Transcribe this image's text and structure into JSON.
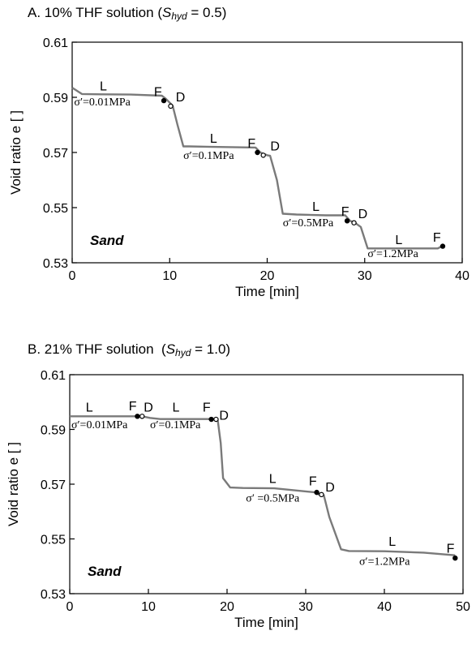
{
  "chart_data": [
    {
      "type": "line",
      "title_prefix": "A. 10% THF solution (",
      "title_var": "S",
      "title_sub": "hyd",
      "title_suffix": " = 0.5)",
      "xlabel": "Time [min]",
      "ylabel": "Void ratio e [ ]",
      "xlim": [
        0,
        40
      ],
      "ylim": [
        0.53,
        0.61
      ],
      "xticks": [
        0,
        10,
        20,
        30,
        40
      ],
      "yticks": [
        "0.53",
        "0.55",
        "0.57",
        "0.59",
        "0.61"
      ],
      "sample_label": "Sand",
      "line_color": "#7a7a7a",
      "series": [
        {
          "x": [
            0,
            1,
            3,
            6,
            9.2,
            9.6,
            10.3,
            10.8,
            11.4,
            12,
            15,
            18.8,
            19.3,
            20.0,
            20.3,
            21.0,
            21.6,
            23,
            26,
            28.0,
            28.5,
            29.0,
            29.6,
            30.3,
            31,
            34,
            37.5,
            38.0
          ],
          "y": [
            0.5935,
            0.5912,
            0.5911,
            0.591,
            0.5906,
            0.5895,
            0.587,
            0.58,
            0.5722,
            0.5722,
            0.572,
            0.5718,
            0.57,
            0.569,
            0.5688,
            0.56,
            0.5478,
            0.5475,
            0.5472,
            0.5472,
            0.5452,
            0.5445,
            0.543,
            0.5352,
            0.5352,
            0.5352,
            0.5352,
            0.5362
          ]
        }
      ],
      "markers": [
        {
          "label": "F",
          "x": 9.4,
          "y": 0.5888,
          "filled": true,
          "lx": 8.8,
          "ly": 0.5905
        },
        {
          "label": "D",
          "x": 10.1,
          "y": 0.5868,
          "filled": false,
          "lx": 11.1,
          "ly": 0.5885
        },
        {
          "label": "F",
          "x": 19.0,
          "y": 0.57,
          "filled": true,
          "lx": 18.4,
          "ly": 0.5717
        },
        {
          "label": "D",
          "x": 19.6,
          "y": 0.569,
          "filled": false,
          "lx": 20.8,
          "ly": 0.5707
        },
        {
          "label": "F",
          "x": 28.2,
          "y": 0.5452,
          "filled": true,
          "lx": 28.0,
          "ly": 0.547
        },
        {
          "label": "D",
          "x": 28.9,
          "y": 0.5445,
          "filled": false,
          "lx": 29.8,
          "ly": 0.5462
        },
        {
          "label": "F",
          "x": 38.0,
          "y": 0.536,
          "filled": true,
          "lx": 37.4,
          "ly": 0.5377
        }
      ],
      "line_labels": [
        {
          "text": "L",
          "x": 3.2,
          "y": 0.5925
        },
        {
          "text": "L",
          "x": 14.5,
          "y": 0.5735
        },
        {
          "text": "L",
          "x": 25.0,
          "y": 0.5488
        },
        {
          "text": "L",
          "x": 33.5,
          "y": 0.5367
        }
      ],
      "stress_labels": [
        {
          "text": "σ′=0.01MPa",
          "x": 0.2,
          "y": 0.587
        },
        {
          "text": "σ′=0.1MPa",
          "x": 11.4,
          "y": 0.5677
        },
        {
          "text": "σ′=0.5MPa",
          "x": 21.6,
          "y": 0.5432
        },
        {
          "text": "σ′=1.2MPa",
          "x": 30.3,
          "y": 0.5321
        }
      ]
    },
    {
      "type": "line",
      "title_prefix": "B. 21% THF solution  (",
      "title_var": "S",
      "title_sub": "hyd",
      "title_suffix": " = 1.0)",
      "xlabel": "Time [min]",
      "ylabel": "Void ratio e [ ]",
      "xlim": [
        0,
        50
      ],
      "ylim": [
        0.53,
        0.61
      ],
      "xticks": [
        0,
        10,
        20,
        30,
        40,
        50
      ],
      "yticks": [
        "0.53",
        "0.55",
        "0.57",
        "0.59",
        "0.61"
      ],
      "sample_label": "Sand",
      "line_color": "#7a7a7a",
      "series": [
        {
          "x": [
            0,
            4,
            8.6,
            9.2,
            10.2,
            11.5,
            14,
            17.8,
            18.4,
            18.8,
            19.2,
            19.5,
            20.4,
            22,
            26,
            31.2,
            31.8,
            32.3,
            33.0,
            34.5,
            35.5,
            40,
            45,
            49
          ],
          "y": [
            0.5948,
            0.5948,
            0.5948,
            0.5948,
            0.5942,
            0.5938,
            0.5938,
            0.5938,
            0.5936,
            0.5936,
            0.585,
            0.5722,
            0.5688,
            0.5686,
            0.5685,
            0.567,
            0.566,
            0.566,
            0.558,
            0.5462,
            0.5456,
            0.5455,
            0.545,
            0.544
          ]
        }
      ],
      "markers": [
        {
          "label": "F",
          "x": 8.6,
          "y": 0.5948,
          "filled": true,
          "lx": 8.0,
          "ly": 0.597
        },
        {
          "label": "D",
          "x": 9.2,
          "y": 0.5948,
          "filled": false,
          "lx": 10.0,
          "ly": 0.5965
        },
        {
          "label": "F",
          "x": 18.0,
          "y": 0.5937,
          "filled": true,
          "lx": 17.4,
          "ly": 0.5965
        },
        {
          "label": "D",
          "x": 18.6,
          "y": 0.5937,
          "filled": false,
          "lx": 19.6,
          "ly": 0.5935
        },
        {
          "label": "F",
          "x": 31.4,
          "y": 0.567,
          "filled": true,
          "lx": 30.9,
          "ly": 0.5695
        },
        {
          "label": "D",
          "x": 32.0,
          "y": 0.5662,
          "filled": false,
          "lx": 33.1,
          "ly": 0.5673
        },
        {
          "label": "F",
          "x": 49.0,
          "y": 0.543,
          "filled": true,
          "lx": 48.4,
          "ly": 0.545
        }
      ],
      "line_labels": [
        {
          "text": "L",
          "x": 2.5,
          "y": 0.5965
        },
        {
          "text": "L",
          "x": 13.5,
          "y": 0.5965
        },
        {
          "text": "L",
          "x": 25.8,
          "y": 0.5705
        },
        {
          "text": "L",
          "x": 41.0,
          "y": 0.5475
        }
      ],
      "stress_labels": [
        {
          "text": "σ′=0.01MPa",
          "x": 0.2,
          "y": 0.5905
        },
        {
          "text": "σ′=0.1MPa",
          "x": 10.2,
          "y": 0.5905
        },
        {
          "text": "σ′ =0.5MPa",
          "x": 22.4,
          "y": 0.5637
        },
        {
          "text": "σ′=1.2MPa",
          "x": 36.8,
          "y": 0.5405
        }
      ]
    }
  ]
}
